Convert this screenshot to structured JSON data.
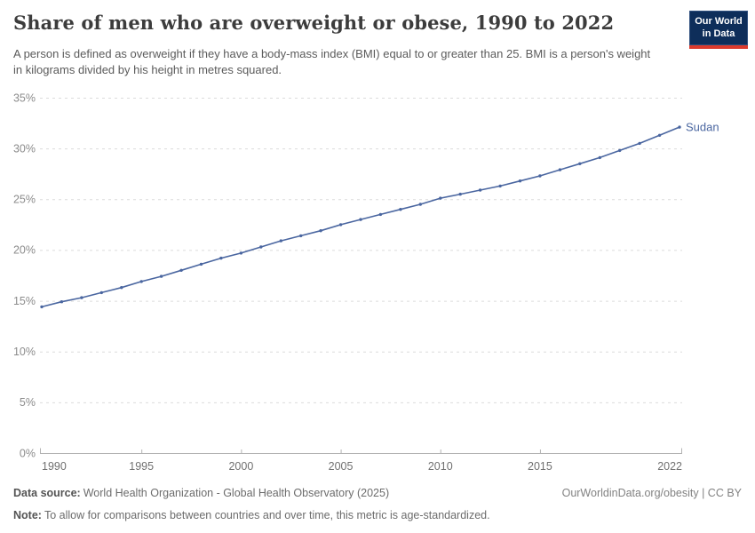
{
  "header": {
    "title": "Share of men who are overweight or obese, 1990 to 2022",
    "subtitle": "A person is defined as overweight if they have a body-mass index (BMI) equal to or greater than 25. BMI is a person's weight in kilograms divided by his height in metres squared.",
    "logo": {
      "line1": "Our World",
      "line2": "in Data",
      "bg": "#0e2e5a",
      "accent": "#dc3a2c"
    }
  },
  "chart_data": {
    "type": "line",
    "title": "Share of men who are overweight or obese, 1990 to 2022",
    "x": [
      1990,
      1991,
      1992,
      1993,
      1994,
      1995,
      1996,
      1997,
      1998,
      1999,
      2000,
      2001,
      2002,
      2003,
      2004,
      2005,
      2006,
      2007,
      2008,
      2009,
      2010,
      2011,
      2012,
      2013,
      2014,
      2015,
      2016,
      2017,
      2018,
      2019,
      2020,
      2021,
      2022
    ],
    "series": [
      {
        "name": "Sudan",
        "color": "#4a66a0",
        "values": [
          14.4,
          14.9,
          15.3,
          15.8,
          16.3,
          16.9,
          17.4,
          18.0,
          18.6,
          19.2,
          19.7,
          20.3,
          20.9,
          21.4,
          21.9,
          22.5,
          23.0,
          23.5,
          24.0,
          24.5,
          25.1,
          25.5,
          25.9,
          26.3,
          26.8,
          27.3,
          27.9,
          28.5,
          29.1,
          29.8,
          30.5,
          31.3,
          32.1
        ]
      }
    ],
    "ylim": [
      0,
      35
    ],
    "yticks": [
      0,
      5,
      10,
      15,
      20,
      25,
      30,
      35
    ],
    "ytick_suffix": "%",
    "xticks": [
      1990,
      1995,
      2000,
      2005,
      2010,
      2015,
      2022
    ],
    "grid": {
      "horizontal": true,
      "style": "dashed",
      "color": "#dcdcdc"
    },
    "axis_color": "#b3b3b3",
    "xtick_label_color": "#707070",
    "ytick_label_color": "#8c8c8c",
    "legend_position": "end-of-line",
    "end_label": "Sudan"
  },
  "footer": {
    "datasource_label": "Data source:",
    "datasource_text": "World Health Organization - Global Health Observatory (2025)",
    "credit": "OurWorldinData.org/obesity | CC BY",
    "note_label": "Note:",
    "note_text": "To allow for comparisons between countries and over time, this metric is age-standardized."
  }
}
